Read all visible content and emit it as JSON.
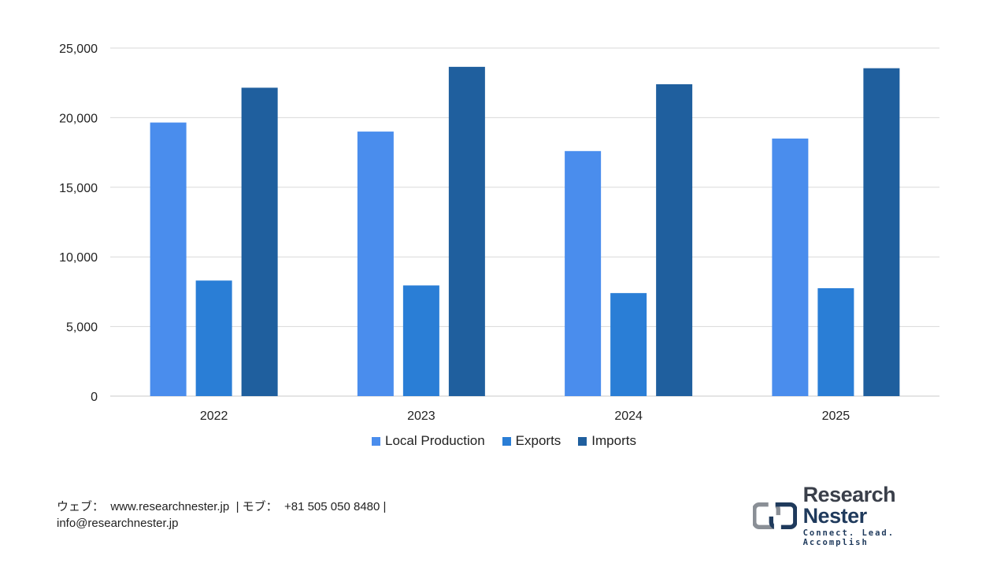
{
  "chart_data": {
    "type": "bar",
    "categories": [
      "2022",
      "2023",
      "2024",
      "2025"
    ],
    "series": [
      {
        "name": "Local Production",
        "color": "#4a8ded",
        "values": [
          19650,
          19000,
          17600,
          18500
        ]
      },
      {
        "name": "Exports",
        "color": "#2a7ed6",
        "values": [
          8300,
          7950,
          7400,
          7750
        ]
      },
      {
        "name": "Imports",
        "color": "#1f5f9e",
        "values": [
          22150,
          23650,
          22400,
          23550
        ]
      }
    ],
    "ylim": [
      0,
      25000
    ],
    "yticks": [
      "0",
      "5,000",
      "10,000",
      "15,000",
      "20,000",
      "25,000"
    ],
    "ytick_values": [
      0,
      5000,
      10000,
      15000,
      20000,
      25000
    ],
    "grid": true,
    "legend_position": "bottom"
  },
  "footer": {
    "contact_line1": "ウェブ：  www.researchnester.jp  | モブ：  +81 505 050 8480 |",
    "contact_line2": "info@researchnester.jp"
  },
  "logo": {
    "name_part1": "Research",
    "name_part2": "Nester",
    "tagline": "Connect. Lead. Accomplish"
  }
}
